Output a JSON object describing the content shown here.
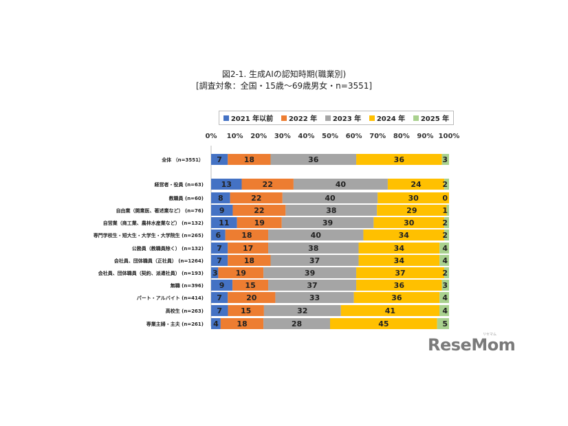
{
  "title": {
    "line1": "図2-1. 生成AIの認知時期(職業別)",
    "line2": "[調査対象：全国・15歳〜69歳男女・n=3551]"
  },
  "logo": {
    "text": "ReseMom",
    "sub": "リセマム"
  },
  "chart_data": {
    "type": "bar",
    "orientation": "horizontal-stacked-100",
    "x_ticks": [
      "0%",
      "10%",
      "20%",
      "30%",
      "40%",
      "50%",
      "60%",
      "70%",
      "80%",
      "90%",
      "100%"
    ],
    "xlim": [
      0,
      100
    ],
    "legend_position": "top",
    "series": [
      {
        "name": "2021 年以前",
        "color": "#4472c4"
      },
      {
        "name": "2022 年",
        "color": "#ed7d31"
      },
      {
        "name": "2023 年",
        "color": "#a5a5a5"
      },
      {
        "name": "2024 年",
        "color": "#ffc000"
      },
      {
        "name": "2025 年",
        "color": "#a9d18e"
      }
    ],
    "categories": [
      {
        "label": "全体 （n=3551）",
        "values": [
          7,
          18,
          36,
          36,
          3
        ]
      },
      {
        "label": "経営者・役員 (n=63)",
        "values": [
          13,
          22,
          40,
          24,
          2
        ]
      },
      {
        "label": "教職員 (n=60)",
        "values": [
          8,
          22,
          40,
          30,
          0
        ]
      },
      {
        "label": "自由業（開業医、著述業など） (n=76)",
        "values": [
          9,
          22,
          38,
          29,
          1
        ]
      },
      {
        "label": "自営業（商工業、農林水産業など） (n=132)",
        "values": [
          11,
          19,
          39,
          30,
          2
        ]
      },
      {
        "label": "専門学校生・短大生・大学生・大学院生 (n=265)",
        "values": [
          6,
          18,
          40,
          34,
          2
        ]
      },
      {
        "label": "公務員（教職員除く） (n=132)",
        "values": [
          7,
          17,
          38,
          34,
          4
        ]
      },
      {
        "label": "会社員、団体職員（正社員） (n=1264)",
        "values": [
          7,
          18,
          37,
          34,
          4
        ]
      },
      {
        "label": "会社員、団体職員（契約、派遣社員） (n=193)",
        "values": [
          3,
          19,
          39,
          37,
          2
        ]
      },
      {
        "label": "無職 (n=396)",
        "values": [
          9,
          15,
          37,
          36,
          3
        ]
      },
      {
        "label": "パート・アルバイト (n=414)",
        "values": [
          7,
          20,
          33,
          36,
          4
        ]
      },
      {
        "label": "高校生 (n=263)",
        "values": [
          7,
          15,
          32,
          41,
          4
        ]
      },
      {
        "label": "専業主婦・主夫 (n=261)",
        "values": [
          4,
          18,
          28,
          45,
          5
        ]
      }
    ]
  }
}
